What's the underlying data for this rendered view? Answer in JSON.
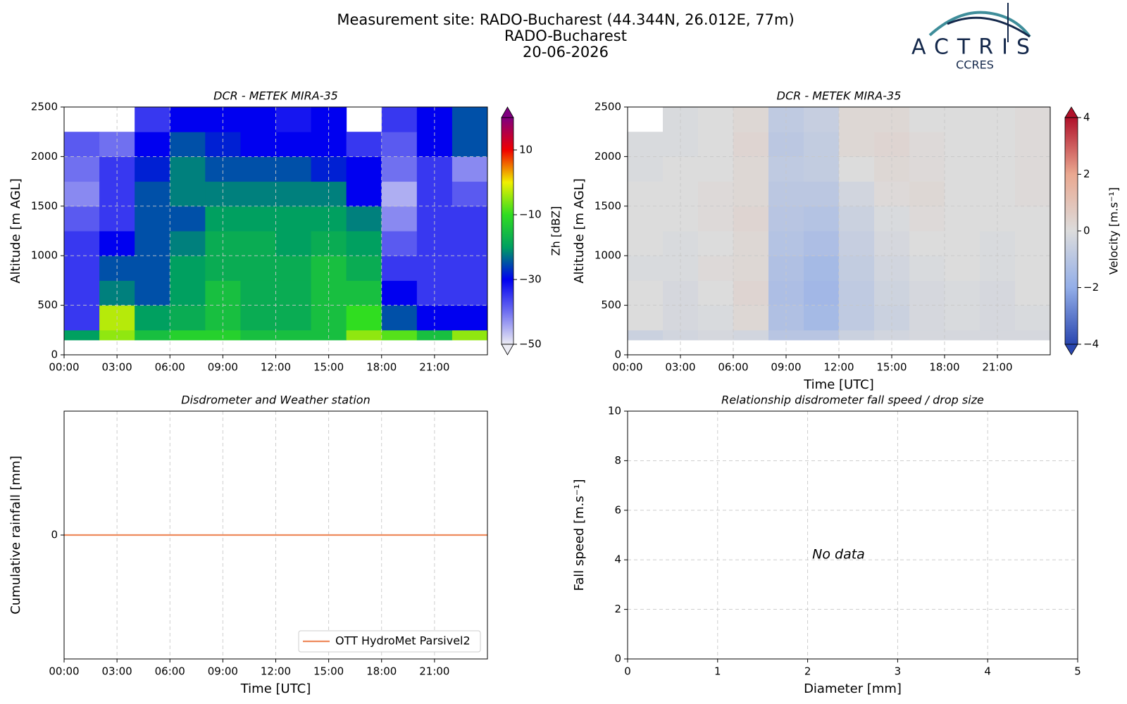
{
  "header": {
    "lines": [
      "Measurement site: RADO-Bucharest (44.344N, 26.012E, 77m)",
      "RADO-Bucharest",
      "20-06-2026"
    ]
  },
  "logo": {
    "name": "ACTRIS",
    "subtitle": "CCRES"
  },
  "chart_data": [
    {
      "type": "heatmap",
      "title": "DCR - METEK MIRA-35",
      "ylabel": "Altitude [m AGL]",
      "xlim": [
        0,
        24
      ],
      "xticks": [
        {
          "value": 0,
          "label": "00:00"
        },
        {
          "value": 3,
          "label": "03:00"
        },
        {
          "value": 6,
          "label": "06:00"
        },
        {
          "value": 9,
          "label": "09:00"
        },
        {
          "value": 12,
          "label": "12:00"
        },
        {
          "value": 15,
          "label": "15:00"
        },
        {
          "value": 18,
          "label": "18:00"
        },
        {
          "value": 21,
          "label": "21:00"
        }
      ],
      "ylim": [
        0,
        2500
      ],
      "yticks": [
        0,
        500,
        1000,
        1500,
        2000,
        2500
      ],
      "grid": true,
      "xbins": [
        0,
        2,
        4,
        6,
        8,
        10,
        12,
        14,
        16,
        18,
        20,
        22,
        24
      ],
      "ybins": [
        150,
        250,
        500,
        750,
        1000,
        1250,
        1500,
        1750,
        2000,
        2250,
        2500
      ],
      "z": [
        [
          -20,
          -5,
          -15,
          -12,
          -12,
          -15,
          -15,
          -15,
          -5,
          -8,
          -15,
          -5
        ],
        [
          -35,
          -3,
          -20,
          -18,
          -15,
          -18,
          -18,
          -15,
          -10,
          -25,
          -30,
          -30
        ],
        [
          -35,
          -22,
          -25,
          -20,
          -15,
          -18,
          -18,
          -15,
          -15,
          -30,
          -35,
          -35
        ],
        [
          -35,
          -25,
          -25,
          -20,
          -18,
          -18,
          -18,
          -15,
          -18,
          -35,
          -35,
          -35
        ],
        [
          -35,
          -30,
          -25,
          -22,
          -18,
          -18,
          -20,
          -18,
          -20,
          -38,
          -35,
          -35
        ],
        [
          -38,
          -35,
          -25,
          -25,
          -20,
          -20,
          -20,
          -20,
          -22,
          -42,
          -35,
          -35
        ],
        [
          -42,
          -35,
          -25,
          -22,
          -22,
          -22,
          -22,
          -22,
          -30,
          -45,
          -35,
          -38
        ],
        [
          -40,
          -35,
          -28,
          -22,
          -25,
          -25,
          -25,
          -28,
          -30,
          -40,
          -35,
          -42
        ],
        [
          -38,
          -40,
          -30,
          -25,
          -28,
          -30,
          -30,
          -30,
          -35,
          -38,
          -30,
          -25
        ],
        [
          null,
          null,
          -35,
          -30,
          -30,
          -30,
          -32,
          -30,
          null,
          -35,
          -30,
          -25
        ]
      ],
      "colormap": [
        "#ececf4",
        "#7070f0",
        "#0000f0",
        "#00a060",
        "#30dd20",
        "#f0f000",
        "#f00000",
        "#800080"
      ],
      "colorbar": {
        "label": "Zh [dBZ]",
        "lim": [
          -50,
          20
        ],
        "extend": "both",
        "ticks": [
          {
            "value": -50,
            "label": "−50"
          },
          {
            "value": -30,
            "label": "−30"
          },
          {
            "value": -10,
            "label": "−10"
          },
          10
        ]
      }
    },
    {
      "type": "heatmap",
      "title": "DCR - METEK MIRA-35",
      "xlabel": "Time [UTC]",
      "ylabel": "Altitude [m AGL]",
      "xlim": [
        0,
        24
      ],
      "xticks": [
        {
          "value": 0,
          "label": "00:00"
        },
        {
          "value": 3,
          "label": "03:00"
        },
        {
          "value": 6,
          "label": "06:00"
        },
        {
          "value": 9,
          "label": "09:00"
        },
        {
          "value": 12,
          "label": "12:00"
        },
        {
          "value": 15,
          "label": "15:00"
        },
        {
          "value": 18,
          "label": "18:00"
        },
        {
          "value": 21,
          "label": "21:00"
        }
      ],
      "ylim": [
        0,
        2500
      ],
      "yticks": [
        0,
        500,
        1000,
        1500,
        2000,
        2500
      ],
      "grid": true,
      "xbins": [
        0,
        2,
        4,
        6,
        8,
        10,
        12,
        14,
        16,
        18,
        20,
        22,
        24
      ],
      "ybins": [
        150,
        250,
        500,
        750,
        1000,
        1250,
        1500,
        1750,
        2000,
        2250,
        2500
      ],
      "z": [
        [
          -0.5,
          -0.3,
          -0.2,
          -0.3,
          -1,
          -1,
          -0.5,
          -0.3,
          -0.2,
          -0.2,
          -0.2,
          -0.2
        ],
        [
          0,
          -0.2,
          -0.1,
          0.2,
          -1.2,
          -1.5,
          -0.8,
          -0.5,
          -0.2,
          -0.1,
          -0.2,
          -0.1
        ],
        [
          0,
          -0.2,
          0,
          0.3,
          -1.3,
          -1.6,
          -0.8,
          -0.4,
          -0.2,
          -0.1,
          -0.2,
          0
        ],
        [
          -0.1,
          -0.1,
          0.1,
          0.2,
          -1.2,
          -1.5,
          -0.7,
          -0.3,
          -0.1,
          0,
          -0.1,
          0
        ],
        [
          0,
          -0.1,
          0,
          0.2,
          -1.1,
          -1.3,
          -0.6,
          -0.2,
          0,
          0,
          -0.1,
          0
        ],
        [
          0,
          0,
          0.1,
          0.3,
          -1,
          -1.1,
          -0.5,
          -0.1,
          0.1,
          0,
          0,
          0
        ],
        [
          0,
          0,
          0.1,
          0.2,
          -0.9,
          -0.9,
          -0.3,
          0.1,
          0.2,
          0,
          0,
          0.1
        ],
        [
          -0.1,
          0,
          0,
          0.2,
          -0.8,
          -0.7,
          0,
          0.2,
          0.1,
          0,
          0,
          0.1
        ],
        [
          -0.1,
          -0.1,
          0,
          0.3,
          -0.9,
          -0.7,
          0.2,
          0.3,
          0.1,
          0,
          0,
          0.1
        ],
        [
          null,
          -0.1,
          0,
          0.2,
          -0.8,
          -0.6,
          0.2,
          0.2,
          0,
          0,
          0,
          0.1
        ]
      ],
      "colormap": [
        "#2a47b0",
        "#93aee8",
        "#dcdcdc",
        "#eaa890",
        "#b0112a"
      ],
      "colorbar": {
        "label": "Velocity [m.s⁻¹]",
        "lim": [
          -4,
          4
        ],
        "extend": "both",
        "ticks": [
          {
            "value": -4,
            "label": "−4"
          },
          {
            "value": -2,
            "label": "−2"
          },
          0,
          2,
          4
        ]
      }
    },
    {
      "type": "line",
      "title": "Disdrometer and Weather station",
      "xlabel": "Time [UTC]",
      "ylabel": "Cumulative rainfall [mm]",
      "xlim": [
        0,
        24
      ],
      "xticks": [
        {
          "value": 0,
          "label": "00:00"
        },
        {
          "value": 3,
          "label": "03:00"
        },
        {
          "value": 6,
          "label": "06:00"
        },
        {
          "value": 9,
          "label": "09:00"
        },
        {
          "value": 12,
          "label": "12:00"
        },
        {
          "value": 15,
          "label": "15:00"
        },
        {
          "value": 18,
          "label": "18:00"
        },
        {
          "value": 21,
          "label": "21:00"
        }
      ],
      "ylim": [
        -0.055,
        0.055
      ],
      "yticks": [
        0
      ],
      "grid": true,
      "legend": "lower right",
      "x": [
        0,
        24
      ],
      "series": [
        {
          "name": "OTT HydroMet Parsivel2",
          "color": "#ee8a5c",
          "values": [
            0,
            0
          ]
        }
      ]
    },
    {
      "type": "scatter",
      "title": "Relationship disdrometer fall speed / drop size",
      "xlabel": "Diameter [mm]",
      "ylabel": "Fall speed [m.s⁻¹]",
      "xlim": [
        0,
        5
      ],
      "xticks": [
        0,
        1,
        2,
        3,
        4,
        5
      ],
      "ylim": [
        0,
        10
      ],
      "yticks": [
        0,
        2,
        4,
        6,
        8,
        10
      ],
      "grid": true,
      "x": [],
      "values": [],
      "annotation": "No data"
    }
  ]
}
